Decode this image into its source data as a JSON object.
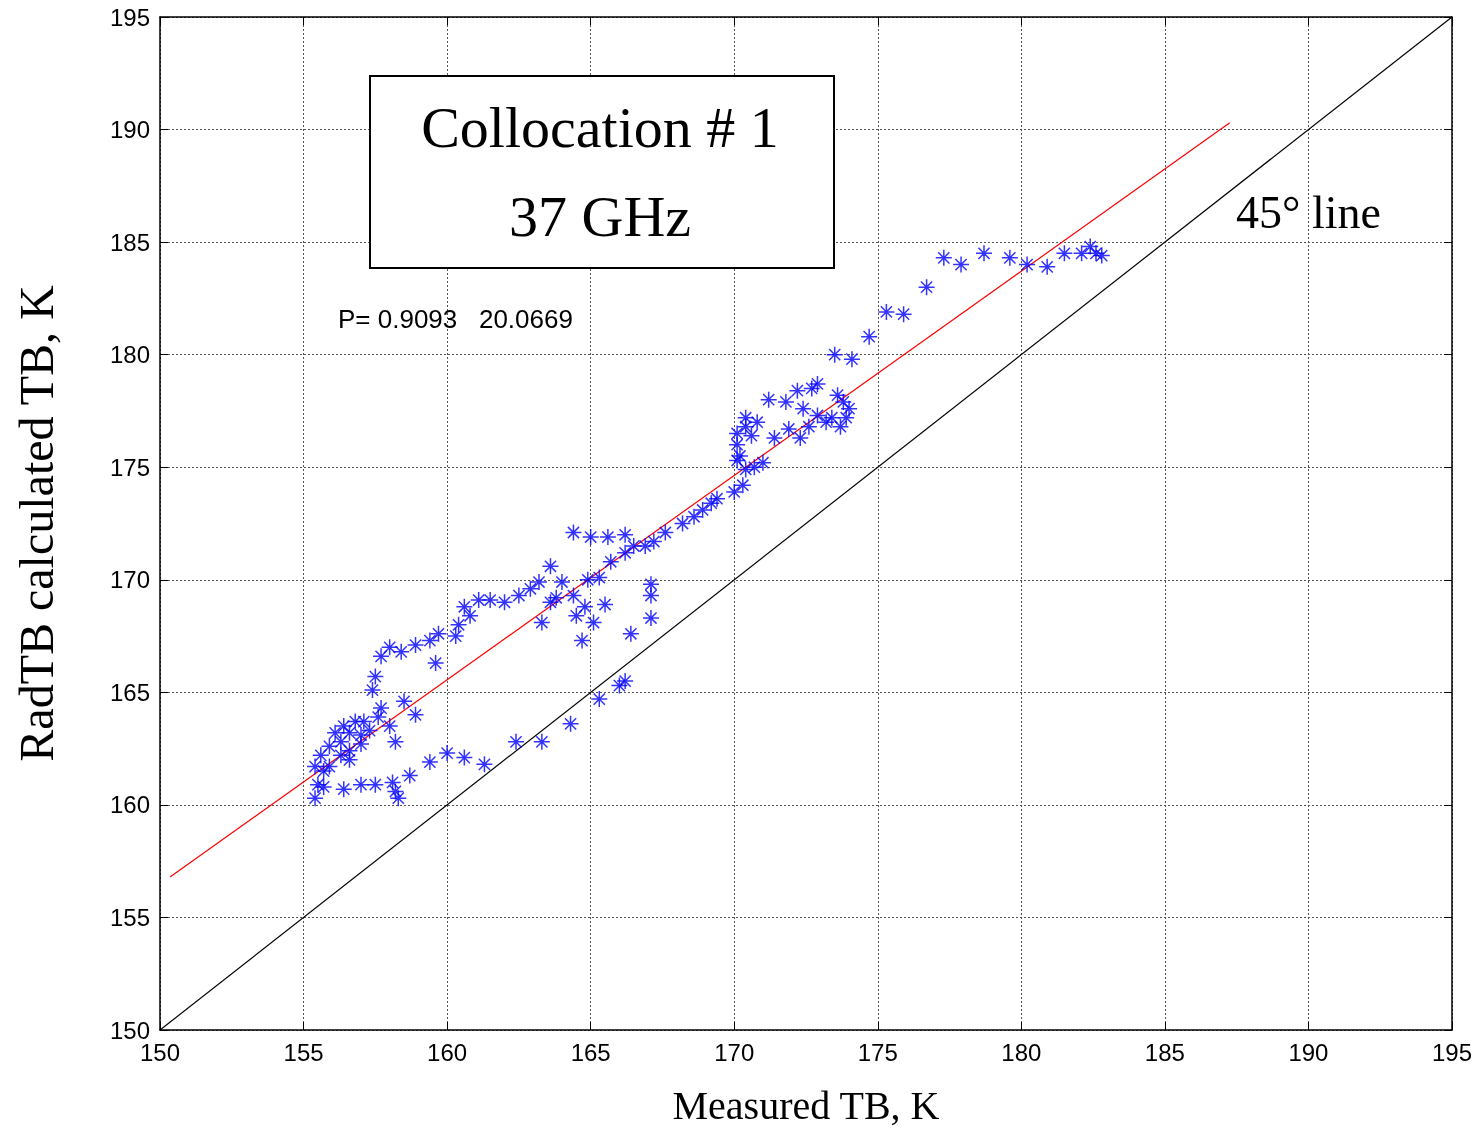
{
  "chart_data": {
    "type": "scatter",
    "xlabel": "Measured TB, K",
    "ylabel": "RadTB calculated TB, K",
    "annotations": [
      "Collocation # 1",
      "37 GHz",
      "P= 0.9093   20.0669",
      "45° line"
    ],
    "xlim": [
      150,
      195
    ],
    "xticks": [
      150,
      155,
      160,
      165,
      170,
      175,
      180,
      185,
      190,
      195
    ],
    "ylim": [
      150,
      195
    ],
    "yticks": [
      150,
      155,
      160,
      165,
      170,
      175,
      180,
      185,
      190,
      195
    ],
    "grid": true,
    "series": [
      {
        "color": "#0000ff",
        "marker": "cross",
        "x": [
          177.3,
          177.9,
          178.7,
          179.6,
          180.2,
          180.9,
          181.5,
          182.1,
          182.4,
          182.6,
          182.8,
          176.7,
          175.9,
          175.3,
          174.7,
          174.1,
          173.5,
          173.6,
          172.9,
          172.7,
          172.2,
          171.2,
          171.8,
          172.4,
          172.9,
          173.2,
          173.8,
          173.9,
          173.7,
          174.0,
          173.4,
          172.6,
          172.3,
          171.9,
          171.4,
          170.8,
          170.4,
          170.1,
          170.1,
          170.4,
          170.6,
          170.2,
          170.1,
          171.0,
          170.7,
          170.4,
          170.3,
          170.0,
          169.4,
          169.2,
          168.9,
          168.6,
          168.2,
          167.6,
          167.2,
          166.9,
          166.5,
          166.2,
          165.7,
          165.3,
          164.9,
          166.2,
          165.6,
          165.0,
          164.4,
          163.6,
          163.2,
          162.9,
          164.0,
          163.8,
          164.4,
          164.8,
          164.5,
          164.7,
          165.1,
          165.5,
          167.1,
          167.1,
          167.1,
          166.4,
          163.6,
          163.3,
          162.5,
          162.0,
          161.5,
          161.1,
          160.6,
          160.4,
          160.8,
          160.3,
          159.7,
          159.4,
          158.9,
          158.4,
          158.0,
          157.7,
          157.5,
          157.4,
          159.6,
          158.5,
          158.9,
          157.6,
          157.3,
          157.0,
          156.6,
          156.3,
          155.9,
          155.6,
          155.4,
          155.5,
          155.4,
          155.7,
          156.4,
          157.0,
          157.5,
          158.1,
          158.2,
          158.3,
          158.7,
          159.4,
          160.0,
          160.6,
          161.3,
          162.4,
          163.3,
          164.3,
          165.3,
          166.0,
          166.2,
          155.9,
          156.3,
          156.6,
          157.0,
          156.8,
          156.4,
          156.1,
          157.1,
          157.7,
          158.0,
          158.2,
          156.6,
          155.7
        ],
        "values": [
          184.3,
          184.0,
          184.5,
          184.3,
          184.0,
          183.9,
          184.5,
          184.5,
          184.8,
          184.5,
          184.4,
          183.0,
          181.8,
          181.9,
          180.8,
          179.8,
          180.0,
          178.2,
          178.7,
          178.5,
          178.4,
          178.0,
          177.9,
          177.6,
          177.3,
          177.0,
          177.9,
          177.2,
          176.8,
          177.6,
          177.2,
          176.8,
          176.3,
          176.7,
          176.3,
          177.0,
          177.2,
          176.5,
          176.0,
          176.8,
          176.4,
          175.5,
          175.3,
          175.2,
          175.0,
          174.9,
          174.2,
          173.9,
          173.6,
          173.4,
          173.1,
          172.8,
          172.5,
          172.1,
          171.7,
          171.5,
          171.5,
          171.2,
          170.8,
          170.1,
          170.0,
          172.0,
          171.9,
          171.9,
          172.1,
          170.6,
          169.9,
          169.6,
          169.9,
          169.2,
          169.3,
          168.8,
          168.4,
          167.3,
          168.1,
          168.9,
          169.8,
          169.3,
          168.3,
          167.6,
          169.0,
          168.1,
          169.3,
          169.0,
          169.1,
          169.1,
          168.8,
          168.0,
          168.4,
          167.5,
          167.6,
          167.3,
          167.1,
          166.8,
          167.0,
          166.6,
          165.7,
          165.1,
          166.3,
          164.6,
          164.0,
          163.9,
          163.3,
          163.1,
          163.2,
          162.8,
          162.6,
          162.2,
          161.7,
          160.9,
          160.3,
          160.8,
          160.7,
          160.9,
          160.9,
          161.0,
          160.6,
          160.3,
          161.3,
          161.9,
          162.3,
          162.1,
          161.8,
          162.8,
          162.8,
          163.6,
          164.7,
          165.3,
          165.5,
          161.7,
          162.2,
          162.4,
          162.7,
          163.7,
          163.5,
          163.2,
          163.7,
          164.3,
          163.5,
          162.8,
          162.0,
          161.5
        ]
      },
      {
        "type": "line",
        "color": "#ff0000",
        "marker": "none",
        "line_style": "solid",
        "x": [
          150.35,
          187.26
        ],
        "values": [
          156.8,
          190.3
        ]
      },
      {
        "type": "line",
        "color": "#000000",
        "marker": "none",
        "line_style": "solid",
        "x": [
          150,
          195
        ],
        "values": [
          150,
          195
        ]
      }
    ]
  }
}
